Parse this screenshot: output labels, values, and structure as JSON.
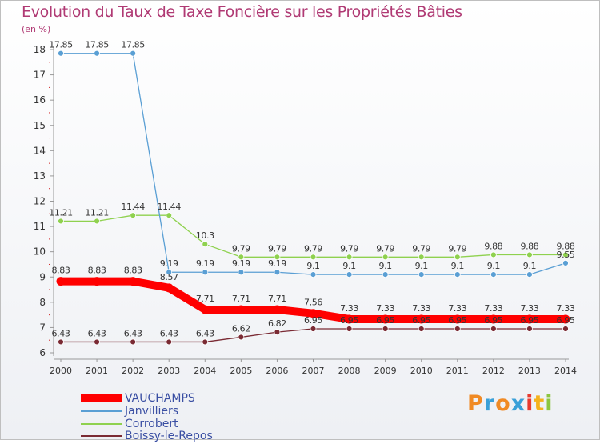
{
  "chart_data": {
    "type": "line",
    "title": "Evolution du Taux de Taxe Foncière sur les Propriétés Bâties",
    "ylabel": "(en %)",
    "x": [
      "2000",
      "2001",
      "2002",
      "2003",
      "2004",
      "2005",
      "2006",
      "2007",
      "2008",
      "2009",
      "2010",
      "2011",
      "2012",
      "2013",
      "2014"
    ],
    "ylim": [
      6,
      18
    ],
    "yticks": [
      "6",
      "7",
      "8",
      "9",
      "10",
      "11",
      "12",
      "13",
      "14",
      "15",
      "16",
      "17",
      "18"
    ],
    "series": [
      {
        "name": "VAUCHAMPS",
        "color": "#ff0000",
        "values": [
          8.83,
          8.83,
          8.83,
          8.57,
          7.71,
          7.71,
          7.71,
          7.56,
          7.33,
          7.33,
          7.33,
          7.33,
          7.33,
          7.33,
          7.33
        ],
        "labels": [
          "8.83",
          "8.83",
          "8.83",
          "8.57",
          "7.71",
          "7.71",
          "7.71",
          "7.56",
          "7.33",
          "7.33",
          "7.33",
          "7.33",
          "7.33",
          "7.33",
          "7.33"
        ]
      },
      {
        "name": "Janvilliers",
        "color": "#5a9fd4",
        "values": [
          17.85,
          17.85,
          17.85,
          9.19,
          9.19,
          9.19,
          9.19,
          9.1,
          9.1,
          9.1,
          9.1,
          9.1,
          9.1,
          9.1,
          9.55
        ],
        "labels": [
          "17.85",
          "17.85",
          "17.85",
          "9.19",
          "9.19",
          "9.19",
          "9.19",
          "9.1",
          "9.1",
          "9.1",
          "9.1",
          "9.1",
          "9.1",
          "9.1",
          "9.55"
        ]
      },
      {
        "name": "Corrobert",
        "color": "#8fd14f",
        "values": [
          11.21,
          11.21,
          11.44,
          11.44,
          10.3,
          9.79,
          9.79,
          9.79,
          9.79,
          9.79,
          9.79,
          9.79,
          9.88,
          9.88,
          9.88
        ],
        "labels": [
          "11.21",
          "11.21",
          "11.44",
          "11.44",
          "10.3",
          "9.79",
          "9.79",
          "9.79",
          "9.79",
          "9.79",
          "9.79",
          "9.79",
          "9.88",
          "9.88",
          "9.88"
        ]
      },
      {
        "name": "Boissy-le-Repos",
        "color": "#7a2a33",
        "values": [
          6.43,
          6.43,
          6.43,
          6.43,
          6.43,
          6.62,
          6.82,
          6.95,
          6.95,
          6.95,
          6.95,
          6.95,
          6.95,
          6.95,
          6.95
        ],
        "labels": [
          "6.43",
          "6.43",
          "6.43",
          "6.43",
          "6.43",
          "6.62",
          "6.82",
          "6.95",
          "6.95",
          "6.95",
          "6.95",
          "6.95",
          "6.95",
          "6.95",
          "6.95"
        ]
      }
    ],
    "legend": "bottom-left",
    "grid": false
  },
  "brand": {
    "letters": [
      "P",
      "r",
      "o",
      "x",
      "i",
      "t",
      "i"
    ],
    "colors": [
      "#f08a24",
      "#3aa0d8",
      "#f08a24",
      "#3aa0d8",
      "#e83a2f",
      "#f5b21b",
      "#8cc63f"
    ]
  }
}
